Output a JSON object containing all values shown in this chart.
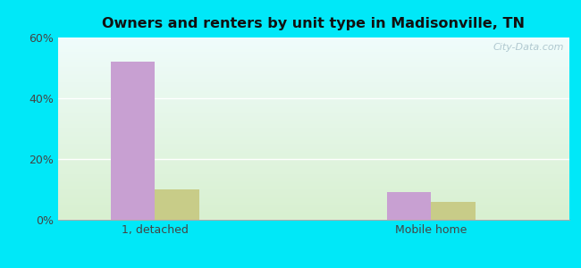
{
  "title": "Owners and renters by unit type in Madisonville, TN",
  "categories": [
    "1, detached",
    "Mobile home"
  ],
  "owner_values": [
    52,
    9
  ],
  "renter_values": [
    10,
    6
  ],
  "owner_color": "#c8a0d2",
  "renter_color": "#c8cc88",
  "ylim": [
    0,
    60
  ],
  "yticks": [
    0,
    20,
    40,
    60
  ],
  "yticklabels": [
    "0%",
    "20%",
    "40%",
    "60%"
  ],
  "background_outer": "#00e8f8",
  "watermark": "City-Data.com",
  "bar_width": 0.32,
  "x_positions": [
    1.0,
    3.0
  ],
  "xlim": [
    0.3,
    4.0
  ]
}
